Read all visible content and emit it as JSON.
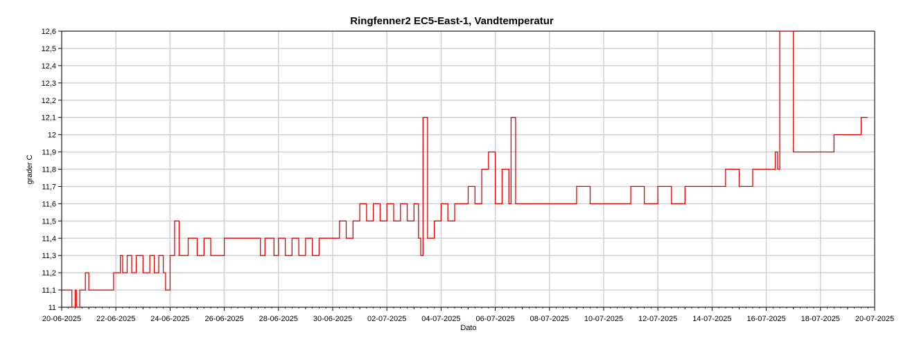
{
  "chart_data": {
    "type": "line",
    "title": "Ringfenner2 EC5-East-1, Vandtemperatur",
    "xlabel": "Dato",
    "ylabel": "grader C",
    "ylim": [
      11,
      12.6
    ],
    "xlim": [
      "2025-06-20",
      "2025-07-20"
    ],
    "grid": true,
    "line_color": "#e60000",
    "x_tick_labels": [
      "20-06-2025",
      "22-06-2025",
      "24-06-2025",
      "26-06-2025",
      "28-06-2025",
      "30-06-2025",
      "02-07-2025",
      "04-07-2025",
      "06-07-2025",
      "08-07-2025",
      "10-07-2025",
      "12-07-2025",
      "14-07-2025",
      "16-07-2025",
      "18-07-2025",
      "20-07-2025"
    ],
    "y_tick_labels": [
      "11",
      "11,1",
      "11,2",
      "11,3",
      "11,4",
      "11,5",
      "11,6",
      "11,7",
      "11,8",
      "11,9",
      "12",
      "12,1",
      "12,2",
      "12,3",
      "12,4",
      "12,5",
      "12,6"
    ],
    "series": [
      {
        "x": [
          "2025-06-20T00:00",
          "2025-06-20T08:00",
          "2025-06-20T09:00",
          "2025-06-20T12:00",
          "2025-06-20T13:00",
          "2025-06-20T16:00",
          "2025-06-20T17:00",
          "2025-06-20T20:00",
          "2025-06-20T21:00",
          "2025-06-21T00:00",
          "2025-06-21T01:00",
          "2025-06-21T04:00",
          "2025-06-21T08:00",
          "2025-06-21T12:00",
          "2025-06-21T16:00",
          "2025-06-21T18:00",
          "2025-06-21T22:00",
          "2025-06-22T00:00",
          "2025-06-22T04:00",
          "2025-06-22T06:00",
          "2025-06-22T10:00",
          "2025-06-22T14:00",
          "2025-06-22T18:00",
          "2025-06-23T00:00",
          "2025-06-23T06:00",
          "2025-06-23T10:00",
          "2025-06-23T14:00",
          "2025-06-23T18:00",
          "2025-06-23T20:00",
          "2025-06-24T00:00",
          "2025-06-24T04:00",
          "2025-06-24T08:00",
          "2025-06-24T12:00",
          "2025-06-24T16:00",
          "2025-06-25T00:00",
          "2025-06-25T06:00",
          "2025-06-25T12:00",
          "2025-06-25T18:00",
          "2025-06-26T00:00",
          "2025-06-26T12:00",
          "2025-06-27T00:00",
          "2025-06-27T08:00",
          "2025-06-27T12:00",
          "2025-06-27T20:00",
          "2025-06-28T00:00",
          "2025-06-28T06:00",
          "2025-06-28T12:00",
          "2025-06-28T18:00",
          "2025-06-29T00:00",
          "2025-06-29T06:00",
          "2025-06-29T12:00",
          "2025-06-29T18:00",
          "2025-06-30T00:00",
          "2025-06-30T06:00",
          "2025-06-30T12:00",
          "2025-06-30T18:00",
          "2025-07-01T00:00",
          "2025-07-01T06:00",
          "2025-07-01T12:00",
          "2025-07-01T18:00",
          "2025-07-02T00:00",
          "2025-07-02T06:00",
          "2025-07-02T12:00",
          "2025-07-02T18:00",
          "2025-07-03T00:00",
          "2025-07-03T04:00",
          "2025-07-03T06:00",
          "2025-07-03T08:00",
          "2025-07-03T12:00",
          "2025-07-03T18:00",
          "2025-07-04T00:00",
          "2025-07-04T06:00",
          "2025-07-04T12:00",
          "2025-07-04T18:00",
          "2025-07-05T00:00",
          "2025-07-05T06:00",
          "2025-07-05T12:00",
          "2025-07-05T18:00",
          "2025-07-06T00:00",
          "2025-07-06T06:00",
          "2025-07-06T12:00",
          "2025-07-06T14:00",
          "2025-07-06T18:00",
          "2025-07-07T00:00",
          "2025-07-07T12:00",
          "2025-07-08T00:00",
          "2025-07-08T12:00",
          "2025-07-09T00:00",
          "2025-07-09T12:00",
          "2025-07-10T00:00",
          "2025-07-10T12:00",
          "2025-07-11T00:00",
          "2025-07-11T12:00",
          "2025-07-12T00:00",
          "2025-07-12T12:00",
          "2025-07-13T00:00",
          "2025-07-13T12:00",
          "2025-07-14T00:00",
          "2025-07-14T12:00",
          "2025-07-15T00:00",
          "2025-07-15T12:00",
          "2025-07-16T00:00",
          "2025-07-16T08:00",
          "2025-07-16T10:00",
          "2025-07-16T12:00",
          "2025-07-17T00:00",
          "2025-07-17T12:00",
          "2025-07-18T00:00",
          "2025-07-18T12:00",
          "2025-07-19T00:00",
          "2025-07-19T12:00",
          "2025-07-19T18:00"
        ],
        "y": [
          11.1,
          11.1,
          11.0,
          11.1,
          11.0,
          11.1,
          11.1,
          11.1,
          11.2,
          11.1,
          11.1,
          11.1,
          11.1,
          11.1,
          11.1,
          11.1,
          11.2,
          11.2,
          11.3,
          11.2,
          11.3,
          11.2,
          11.3,
          11.2,
          11.3,
          11.2,
          11.3,
          11.2,
          11.1,
          11.3,
          11.5,
          11.3,
          11.3,
          11.4,
          11.3,
          11.4,
          11.3,
          11.3,
          11.4,
          11.4,
          11.4,
          11.3,
          11.4,
          11.3,
          11.4,
          11.3,
          11.4,
          11.3,
          11.4,
          11.3,
          11.4,
          11.4,
          11.4,
          11.5,
          11.4,
          11.5,
          11.6,
          11.5,
          11.6,
          11.5,
          11.6,
          11.5,
          11.6,
          11.5,
          11.6,
          11.4,
          11.3,
          12.1,
          11.4,
          11.5,
          11.6,
          11.5,
          11.6,
          11.6,
          11.7,
          11.6,
          11.8,
          11.9,
          11.6,
          11.8,
          11.6,
          12.1,
          11.6,
          11.6,
          11.6,
          11.6,
          11.6,
          11.7,
          11.6,
          11.6,
          11.6,
          11.7,
          11.6,
          11.7,
          11.6,
          11.7,
          11.7,
          11.7,
          11.8,
          11.7,
          11.8,
          11.8,
          11.9,
          11.8,
          12.6,
          11.9,
          11.9,
          11.9,
          12.0,
          12.0,
          12.1,
          12.1
        ]
      }
    ]
  }
}
